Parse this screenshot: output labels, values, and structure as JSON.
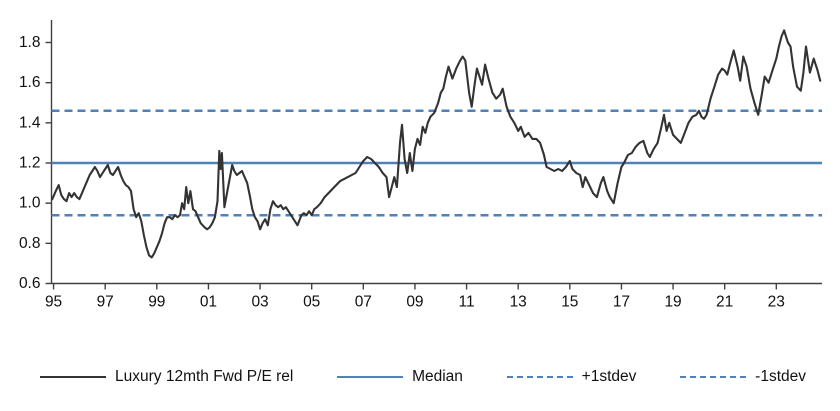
{
  "chart_data": {
    "type": "line",
    "series_name": "Luxury 12mth Fwd P/E rel",
    "grid": false,
    "legend_position": "bottom",
    "colors": {
      "series": "#333333",
      "reference": "#4F81BD",
      "axis": "#404040",
      "text": "#111111"
    },
    "xlim": [
      1994.92,
      2024.77
    ],
    "ylim": [
      0.6,
      1.912
    ],
    "y_ticks": {
      "values": [
        0.6,
        0.8,
        1.0,
        1.2,
        1.4,
        1.6,
        1.8
      ],
      "labels": [
        "0.6",
        "0.8",
        "1.0",
        "1.2",
        "1.4",
        "1.6",
        "1.8"
      ]
    },
    "x_ticks": {
      "values": [
        1995,
        1997,
        1999,
        2001,
        2003,
        2005,
        2007,
        2009,
        2011,
        2013,
        2015,
        2017,
        2019,
        2021,
        2023
      ],
      "labels": [
        "95",
        "97",
        "99",
        "01",
        "03",
        "05",
        "07",
        "09",
        "11",
        "13",
        "15",
        "17",
        "19",
        "21",
        "23"
      ]
    },
    "reference_lines": [
      {
        "key": "median",
        "name": "Median",
        "value": 1.2,
        "style": "solid"
      },
      {
        "key": "plus-1stdev",
        "name": "+1stdev",
        "value": 1.46,
        "style": "dashed"
      },
      {
        "key": "minus-1stdev",
        "name": "-1stdev",
        "value": 0.94,
        "style": "dashed"
      }
    ],
    "legend": [
      {
        "label": "Luxury 12mth Fwd P/E rel",
        "color": "#333333",
        "style": "solid"
      },
      {
        "label": "Median",
        "color": "#4F81BD",
        "style": "solid"
      },
      {
        "label": "+1stdev",
        "color": "#4F81BD",
        "style": "dashed"
      },
      {
        "label": "-1stdev",
        "color": "#4F81BD",
        "style": "dashed"
      }
    ],
    "points": [
      [
        1994.95,
        1.02
      ],
      [
        1995.05,
        1.05
      ],
      [
        1995.12,
        1.07
      ],
      [
        1995.2,
        1.09
      ],
      [
        1995.3,
        1.04
      ],
      [
        1995.4,
        1.02
      ],
      [
        1995.5,
        1.01
      ],
      [
        1995.6,
        1.05
      ],
      [
        1995.7,
        1.03
      ],
      [
        1995.8,
        1.05
      ],
      [
        1995.9,
        1.03
      ],
      [
        1996.0,
        1.02
      ],
      [
        1996.1,
        1.05
      ],
      [
        1996.2,
        1.08
      ],
      [
        1996.3,
        1.11
      ],
      [
        1996.4,
        1.14
      ],
      [
        1996.5,
        1.16
      ],
      [
        1996.6,
        1.18
      ],
      [
        1996.7,
        1.16
      ],
      [
        1996.8,
        1.13
      ],
      [
        1996.9,
        1.15
      ],
      [
        1997.0,
        1.17
      ],
      [
        1997.1,
        1.19
      ],
      [
        1997.2,
        1.15
      ],
      [
        1997.3,
        1.14
      ],
      [
        1997.4,
        1.16
      ],
      [
        1997.5,
        1.18
      ],
      [
        1997.6,
        1.14
      ],
      [
        1997.7,
        1.11
      ],
      [
        1997.8,
        1.09
      ],
      [
        1997.9,
        1.08
      ],
      [
        1998.0,
        1.06
      ],
      [
        1998.1,
        0.97
      ],
      [
        1998.2,
        0.93
      ],
      [
        1998.3,
        0.95
      ],
      [
        1998.4,
        0.91
      ],
      [
        1998.5,
        0.84
      ],
      [
        1998.6,
        0.78
      ],
      [
        1998.7,
        0.74
      ],
      [
        1998.8,
        0.73
      ],
      [
        1998.9,
        0.75
      ],
      [
        1999.0,
        0.78
      ],
      [
        1999.1,
        0.81
      ],
      [
        1999.2,
        0.85
      ],
      [
        1999.3,
        0.9
      ],
      [
        1999.4,
        0.93
      ],
      [
        1999.5,
        0.93
      ],
      [
        1999.6,
        0.92
      ],
      [
        1999.7,
        0.94
      ],
      [
        1999.8,
        0.93
      ],
      [
        1999.9,
        0.94
      ],
      [
        1999.98,
        1.0
      ],
      [
        2000.06,
        0.97
      ],
      [
        2000.14,
        1.08
      ],
      [
        2000.22,
        1.0
      ],
      [
        2000.3,
        1.06
      ],
      [
        2000.4,
        0.97
      ],
      [
        2000.5,
        0.96
      ],
      [
        2000.6,
        0.93
      ],
      [
        2000.7,
        0.9
      ],
      [
        2000.85,
        0.88
      ],
      [
        2000.95,
        0.87
      ],
      [
        2001.05,
        0.88
      ],
      [
        2001.15,
        0.9
      ],
      [
        2001.25,
        0.93
      ],
      [
        2001.35,
        1.01
      ],
      [
        2001.42,
        1.26
      ],
      [
        2001.47,
        1.17
      ],
      [
        2001.52,
        1.25
      ],
      [
        2001.62,
        0.98
      ],
      [
        2001.72,
        1.05
      ],
      [
        2001.82,
        1.12
      ],
      [
        2001.92,
        1.19
      ],
      [
        2002.0,
        1.16
      ],
      [
        2002.1,
        1.14
      ],
      [
        2002.2,
        1.15
      ],
      [
        2002.3,
        1.16
      ],
      [
        2002.4,
        1.13
      ],
      [
        2002.5,
        1.1
      ],
      [
        2002.6,
        1.04
      ],
      [
        2002.7,
        0.97
      ],
      [
        2002.8,
        0.93
      ],
      [
        2002.9,
        0.91
      ],
      [
        2003.0,
        0.87
      ],
      [
        2003.1,
        0.9
      ],
      [
        2003.2,
        0.92
      ],
      [
        2003.3,
        0.89
      ],
      [
        2003.4,
        0.97
      ],
      [
        2003.5,
        1.01
      ],
      [
        2003.6,
        0.99
      ],
      [
        2003.7,
        0.98
      ],
      [
        2003.8,
        0.99
      ],
      [
        2003.9,
        0.97
      ],
      [
        2004.0,
        0.98
      ],
      [
        2004.1,
        0.96
      ],
      [
        2004.2,
        0.94
      ],
      [
        2004.3,
        0.92
      ],
      [
        2004.45,
        0.89
      ],
      [
        2004.6,
        0.94
      ],
      [
        2004.7,
        0.95
      ],
      [
        2004.8,
        0.94
      ],
      [
        2004.9,
        0.96
      ],
      [
        2005.0,
        0.94
      ],
      [
        2005.1,
        0.97
      ],
      [
        2005.2,
        0.98
      ],
      [
        2005.35,
        1.0
      ],
      [
        2005.5,
        1.03
      ],
      [
        2005.65,
        1.05
      ],
      [
        2005.8,
        1.07
      ],
      [
        2005.95,
        1.09
      ],
      [
        2006.1,
        1.11
      ],
      [
        2006.25,
        1.12
      ],
      [
        2006.4,
        1.13
      ],
      [
        2006.55,
        1.14
      ],
      [
        2006.7,
        1.15
      ],
      [
        2006.85,
        1.18
      ],
      [
        2007.0,
        1.21
      ],
      [
        2007.15,
        1.23
      ],
      [
        2007.3,
        1.22
      ],
      [
        2007.45,
        1.2
      ],
      [
        2007.6,
        1.18
      ],
      [
        2007.75,
        1.15
      ],
      [
        2007.9,
        1.13
      ],
      [
        2008.0,
        1.03
      ],
      [
        2008.1,
        1.08
      ],
      [
        2008.2,
        1.13
      ],
      [
        2008.3,
        1.08
      ],
      [
        2008.42,
        1.3
      ],
      [
        2008.5,
        1.39
      ],
      [
        2008.6,
        1.22
      ],
      [
        2008.7,
        1.15
      ],
      [
        2008.8,
        1.25
      ],
      [
        2008.9,
        1.16
      ],
      [
        2009.0,
        1.27
      ],
      [
        2009.1,
        1.32
      ],
      [
        2009.2,
        1.29
      ],
      [
        2009.3,
        1.38
      ],
      [
        2009.4,
        1.35
      ],
      [
        2009.5,
        1.4
      ],
      [
        2009.6,
        1.43
      ],
      [
        2009.75,
        1.45
      ],
      [
        2009.9,
        1.5
      ],
      [
        2010.0,
        1.55
      ],
      [
        2010.1,
        1.57
      ],
      [
        2010.2,
        1.63
      ],
      [
        2010.3,
        1.68
      ],
      [
        2010.45,
        1.62
      ],
      [
        2010.6,
        1.67
      ],
      [
        2010.75,
        1.71
      ],
      [
        2010.85,
        1.73
      ],
      [
        2010.95,
        1.71
      ],
      [
        2011.1,
        1.55
      ],
      [
        2011.2,
        1.48
      ],
      [
        2011.3,
        1.58
      ],
      [
        2011.4,
        1.67
      ],
      [
        2011.5,
        1.63
      ],
      [
        2011.6,
        1.59
      ],
      [
        2011.72,
        1.69
      ],
      [
        2011.85,
        1.62
      ],
      [
        2012.0,
        1.55
      ],
      [
        2012.15,
        1.52
      ],
      [
        2012.3,
        1.54
      ],
      [
        2012.4,
        1.57
      ],
      [
        2012.55,
        1.48
      ],
      [
        2012.7,
        1.43
      ],
      [
        2012.85,
        1.4
      ],
      [
        2013.0,
        1.36
      ],
      [
        2013.1,
        1.38
      ],
      [
        2013.25,
        1.33
      ],
      [
        2013.4,
        1.35
      ],
      [
        2013.55,
        1.32
      ],
      [
        2013.7,
        1.32
      ],
      [
        2013.85,
        1.3
      ],
      [
        2014.0,
        1.24
      ],
      [
        2014.1,
        1.18
      ],
      [
        2014.25,
        1.17
      ],
      [
        2014.4,
        1.16
      ],
      [
        2014.55,
        1.17
      ],
      [
        2014.7,
        1.16
      ],
      [
        2014.85,
        1.18
      ],
      [
        2015.0,
        1.21
      ],
      [
        2015.1,
        1.17
      ],
      [
        2015.25,
        1.15
      ],
      [
        2015.4,
        1.14
      ],
      [
        2015.5,
        1.08
      ],
      [
        2015.6,
        1.13
      ],
      [
        2015.75,
        1.09
      ],
      [
        2015.9,
        1.05
      ],
      [
        2016.05,
        1.03
      ],
      [
        2016.2,
        1.1
      ],
      [
        2016.3,
        1.13
      ],
      [
        2016.45,
        1.06
      ],
      [
        2016.55,
        1.03
      ],
      [
        2016.7,
        1.0
      ],
      [
        2016.85,
        1.1
      ],
      [
        2017.0,
        1.18
      ],
      [
        2017.1,
        1.2
      ],
      [
        2017.25,
        1.24
      ],
      [
        2017.4,
        1.25
      ],
      [
        2017.55,
        1.28
      ],
      [
        2017.7,
        1.3
      ],
      [
        2017.85,
        1.31
      ],
      [
        2018.0,
        1.25
      ],
      [
        2018.1,
        1.23
      ],
      [
        2018.25,
        1.27
      ],
      [
        2018.4,
        1.3
      ],
      [
        2018.55,
        1.38
      ],
      [
        2018.65,
        1.44
      ],
      [
        2018.75,
        1.36
      ],
      [
        2018.85,
        1.4
      ],
      [
        2019.0,
        1.34
      ],
      [
        2019.15,
        1.32
      ],
      [
        2019.3,
        1.3
      ],
      [
        2019.45,
        1.35
      ],
      [
        2019.6,
        1.4
      ],
      [
        2019.75,
        1.43
      ],
      [
        2019.9,
        1.44
      ],
      [
        2020.0,
        1.46
      ],
      [
        2020.1,
        1.43
      ],
      [
        2020.2,
        1.42
      ],
      [
        2020.3,
        1.44
      ],
      [
        2020.45,
        1.52
      ],
      [
        2020.6,
        1.58
      ],
      [
        2020.75,
        1.64
      ],
      [
        2020.9,
        1.67
      ],
      [
        2021.0,
        1.66
      ],
      [
        2021.1,
        1.64
      ],
      [
        2021.2,
        1.69
      ],
      [
        2021.35,
        1.76
      ],
      [
        2021.5,
        1.68
      ],
      [
        2021.6,
        1.61
      ],
      [
        2021.72,
        1.73
      ],
      [
        2021.85,
        1.68
      ],
      [
        2022.0,
        1.57
      ],
      [
        2022.15,
        1.5
      ],
      [
        2022.3,
        1.44
      ],
      [
        2022.45,
        1.55
      ],
      [
        2022.55,
        1.63
      ],
      [
        2022.7,
        1.6
      ],
      [
        2022.85,
        1.66
      ],
      [
        2023.0,
        1.72
      ],
      [
        2023.1,
        1.78
      ],
      [
        2023.2,
        1.83
      ],
      [
        2023.3,
        1.86
      ],
      [
        2023.45,
        1.8
      ],
      [
        2023.55,
        1.78
      ],
      [
        2023.65,
        1.68
      ],
      [
        2023.8,
        1.58
      ],
      [
        2023.95,
        1.56
      ],
      [
        2024.05,
        1.65
      ],
      [
        2024.15,
        1.78
      ],
      [
        2024.3,
        1.65
      ],
      [
        2024.45,
        1.72
      ],
      [
        2024.6,
        1.66
      ],
      [
        2024.7,
        1.61
      ]
    ]
  }
}
